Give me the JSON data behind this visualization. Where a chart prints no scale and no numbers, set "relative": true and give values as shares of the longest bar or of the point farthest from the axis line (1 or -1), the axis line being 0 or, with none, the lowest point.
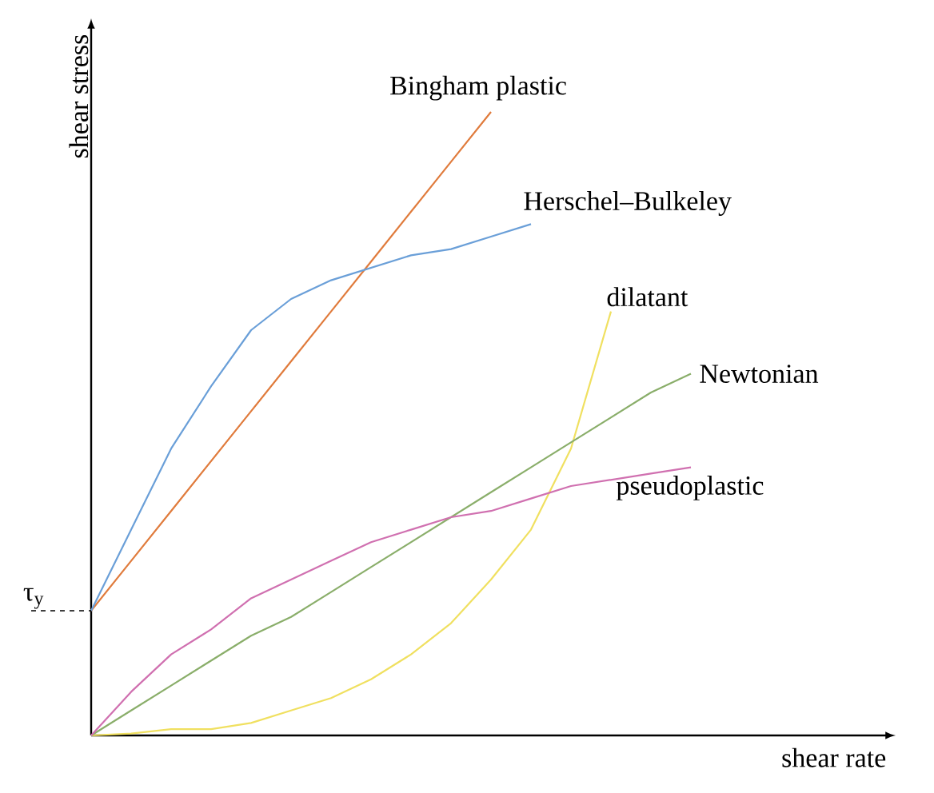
{
  "chart_data": {
    "type": "line",
    "relative": true,
    "xlabel": "shear rate",
    "ylabel": "shear stress",
    "categories": [
      null,
      null,
      null,
      null,
      null,
      null,
      null,
      null,
      null,
      null,
      null,
      null,
      null,
      null,
      null,
      null
    ],
    "series": [
      {
        "name": "Bingham plastic",
        "color": "#e07b3c",
        "values": [
          0.2,
          0.28,
          0.36,
          0.44,
          0.52,
          0.6,
          0.68,
          0.76,
          0.84,
          0.92,
          1.0,
          null,
          null,
          null,
          null,
          null
        ]
      },
      {
        "name": "Herschel–Bulkeley",
        "color": "#6a9fd8",
        "values": [
          0.2,
          0.33,
          0.46,
          0.56,
          0.65,
          0.7,
          0.73,
          0.75,
          0.77,
          0.78,
          0.8,
          0.82,
          null,
          null,
          null,
          null
        ]
      },
      {
        "name": "dilatant",
        "color": "#f0e060",
        "values": [
          0,
          0.003,
          0.01,
          0.01,
          0.02,
          0.04,
          0.06,
          0.09,
          0.13,
          0.18,
          0.25,
          0.33,
          0.46,
          0.68,
          null,
          null
        ]
      },
      {
        "name": "Newtonian",
        "color": "#8aae6a",
        "values": [
          0,
          0.04,
          0.08,
          0.12,
          0.16,
          0.19,
          0.23,
          0.27,
          0.31,
          0.35,
          0.39,
          0.43,
          0.47,
          0.51,
          0.55,
          0.58
        ]
      },
      {
        "name": "pseudoplastic",
        "color": "#d070b0",
        "values": [
          0,
          0.07,
          0.13,
          0.17,
          0.22,
          0.25,
          0.28,
          0.31,
          0.33,
          0.35,
          0.36,
          0.38,
          0.4,
          0.41,
          0.42,
          0.43
        ]
      }
    ],
    "ref_lines": [
      {
        "axis": "y",
        "value": 0.2,
        "label": "τ$_{y}$",
        "line_style": "dashed",
        "color": "#000000"
      }
    ]
  }
}
